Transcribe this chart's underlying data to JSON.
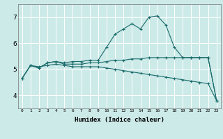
{
  "title": "",
  "xlabel": "Humidex (Indice chaleur)",
  "ylabel": "",
  "background_color": "#cceae8",
  "grid_color_major": "#ffffff",
  "grid_color_minor": "#f0c8c8",
  "line_color": "#1a6b6b",
  "x_data": [
    0,
    1,
    2,
    3,
    4,
    5,
    6,
    7,
    8,
    9,
    10,
    11,
    12,
    13,
    14,
    15,
    16,
    17,
    18,
    19,
    20,
    21,
    22,
    23
  ],
  "line1": [
    4.65,
    5.15,
    5.05,
    5.25,
    5.3,
    5.25,
    5.3,
    5.3,
    5.35,
    5.35,
    5.85,
    6.35,
    6.55,
    6.75,
    6.55,
    7.0,
    7.05,
    6.7,
    5.85,
    5.45,
    5.45,
    5.45,
    5.45,
    3.8
  ],
  "line2": [
    4.65,
    5.15,
    5.05,
    5.25,
    5.3,
    5.2,
    5.2,
    5.2,
    5.25,
    5.25,
    5.3,
    5.35,
    5.35,
    5.4,
    5.4,
    5.45,
    5.45,
    5.45,
    5.45,
    5.45,
    5.45,
    5.45,
    5.45,
    3.8
  ],
  "line3": [
    4.65,
    5.15,
    5.1,
    5.15,
    5.2,
    5.15,
    5.1,
    5.1,
    5.1,
    5.1,
    5.05,
    5.0,
    4.95,
    4.9,
    4.85,
    4.8,
    4.75,
    4.7,
    4.65,
    4.6,
    4.55,
    4.5,
    4.45,
    3.8
  ],
  "xlim": [
    -0.5,
    23.5
  ],
  "ylim": [
    3.5,
    7.5
  ],
  "yticks": [
    4,
    5,
    6,
    7
  ],
  "xticks": [
    0,
    1,
    2,
    3,
    4,
    5,
    6,
    7,
    8,
    9,
    10,
    11,
    12,
    13,
    14,
    15,
    16,
    17,
    18,
    19,
    20,
    21,
    22,
    23
  ],
  "figsize": [
    3.2,
    2.0
  ],
  "dpi": 100
}
